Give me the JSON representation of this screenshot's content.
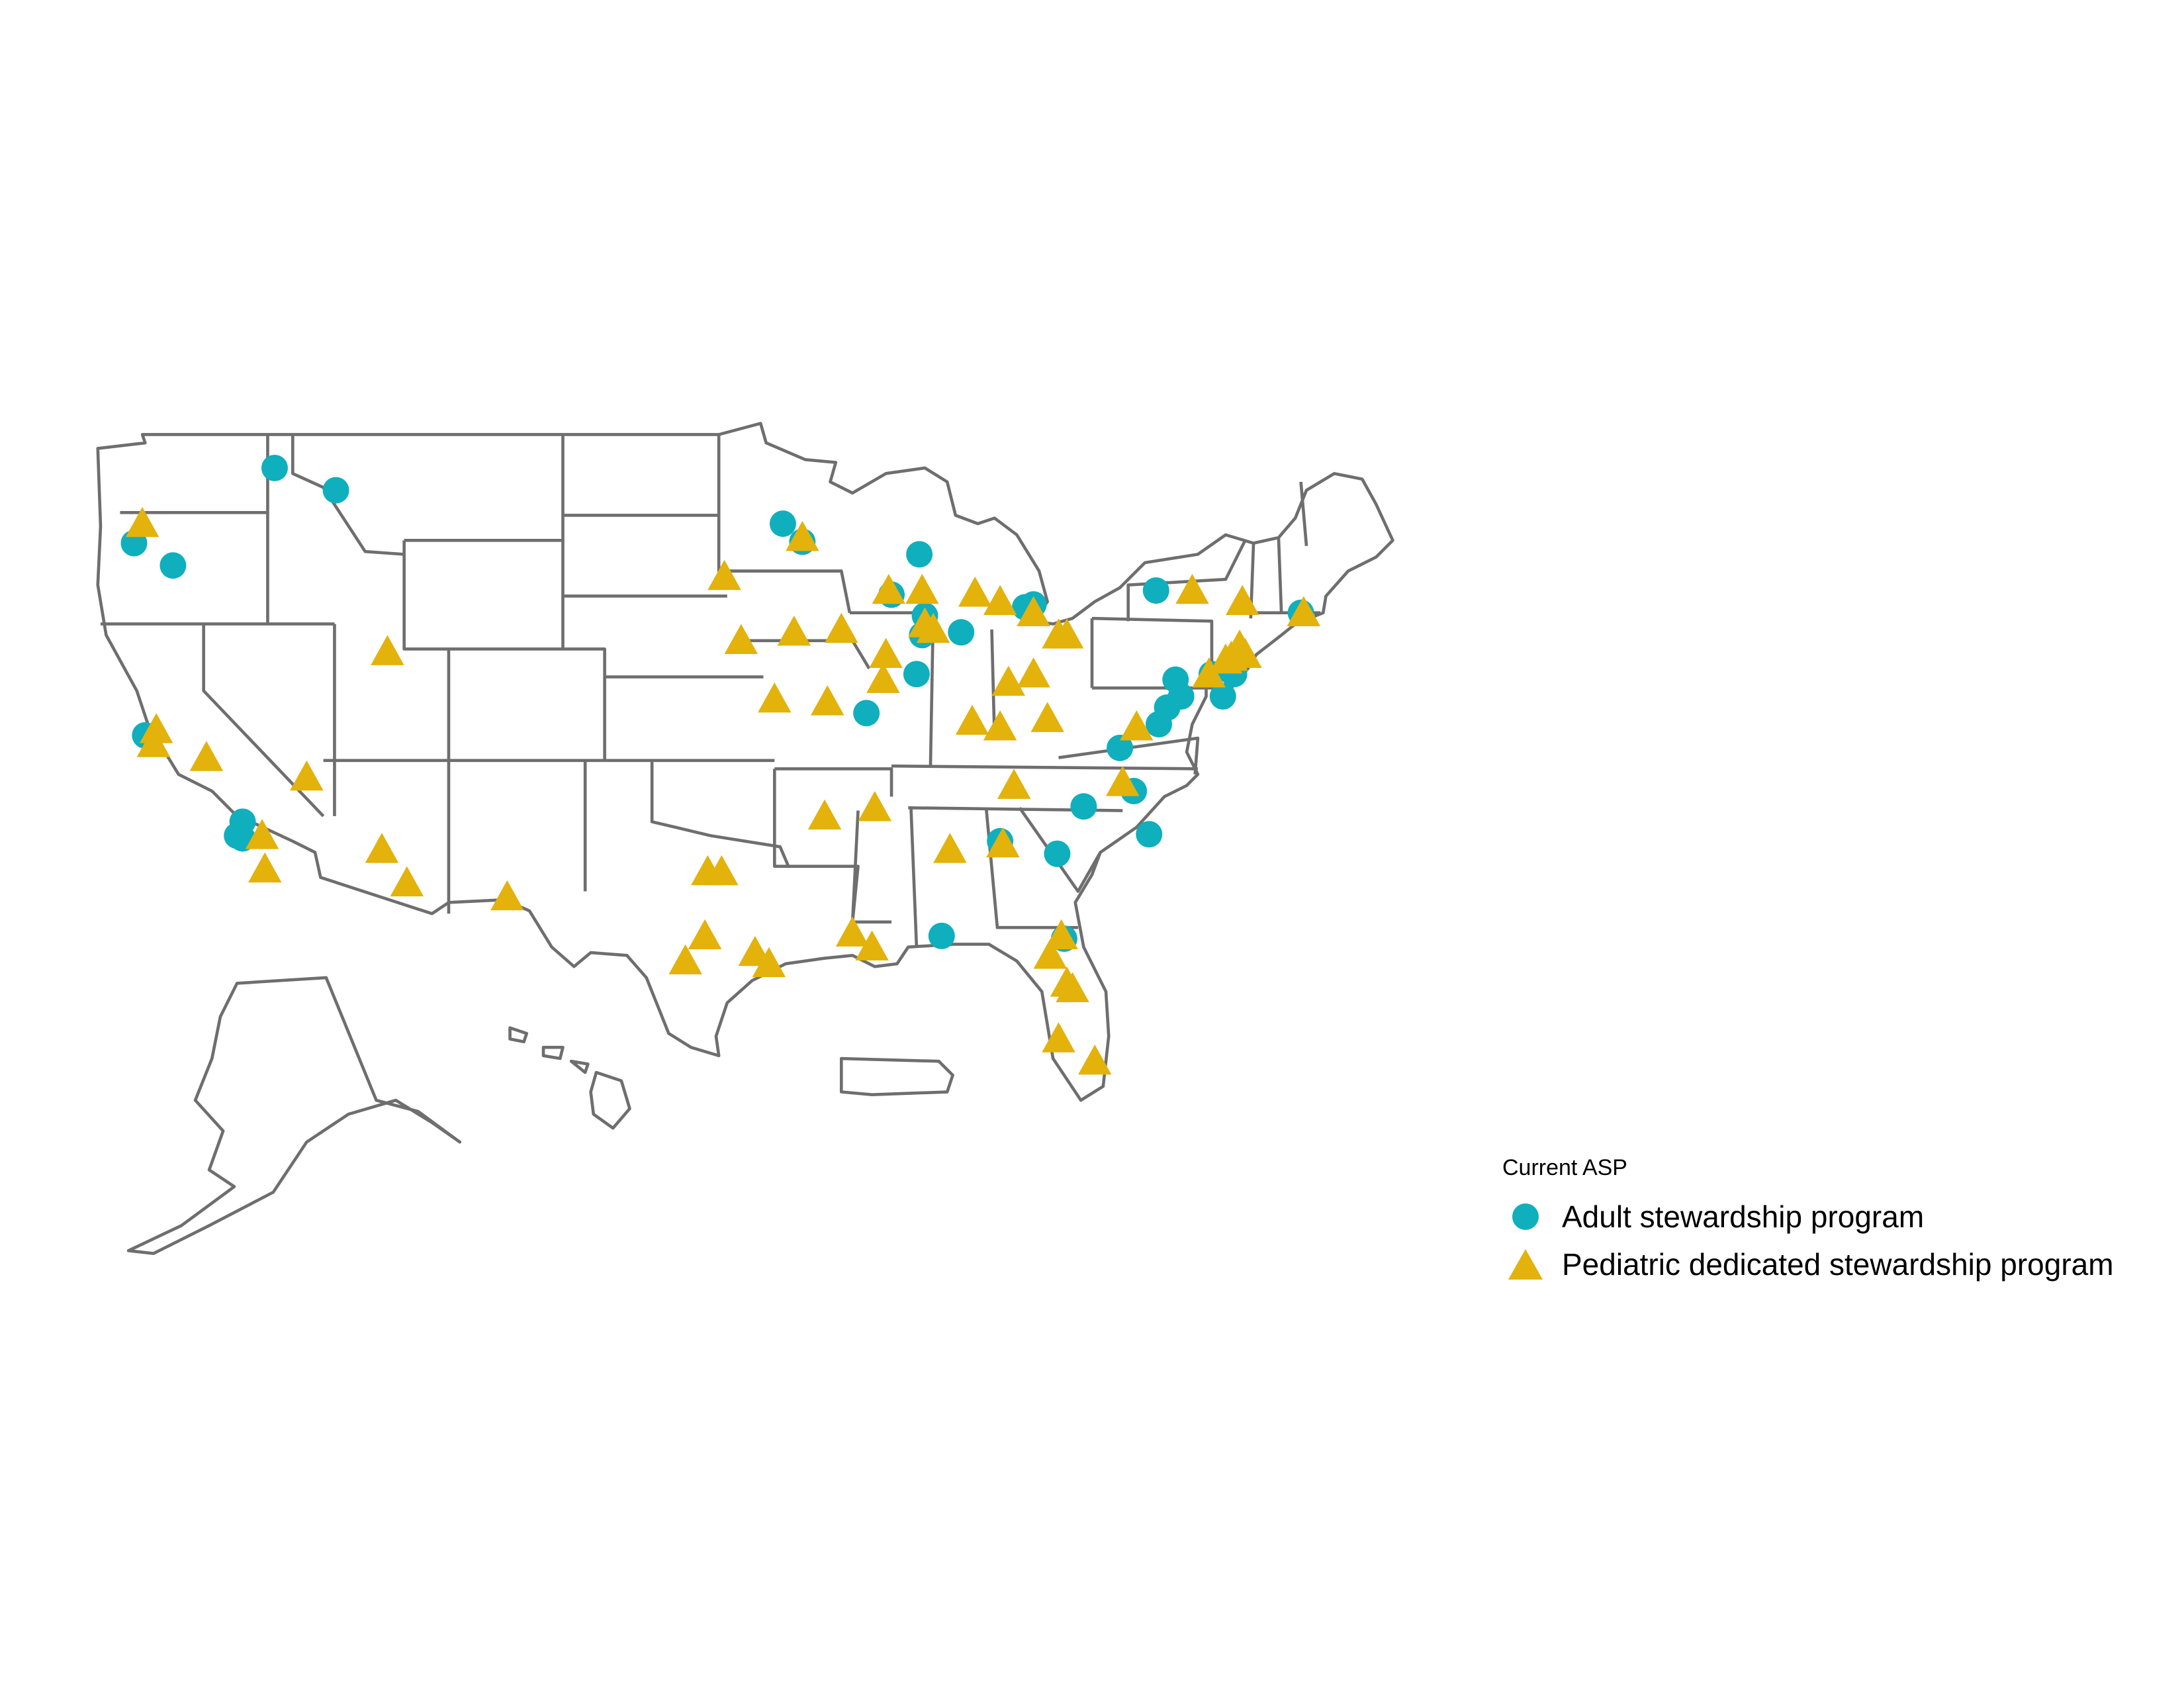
{
  "map": {
    "region": "United States and territories",
    "colors": {
      "borders": "#6e6e6e",
      "background": "#ffffff"
    }
  },
  "legend": {
    "title": "Current ASP",
    "items": [
      {
        "label": "Adult stewardship program",
        "shape": "circle",
        "color": "#0fafbd"
      },
      {
        "label": "Pediatric dedicated stewardship program",
        "shape": "triangle",
        "color": "#e3b20b"
      }
    ]
  }
}
